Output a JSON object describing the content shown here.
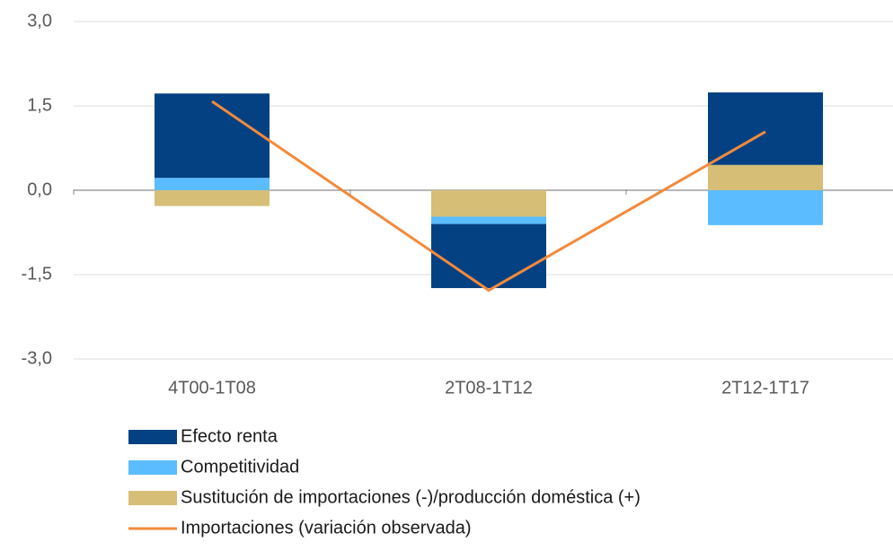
{
  "chart_data": {
    "type": "bar",
    "stacked": true,
    "categories": [
      "4T00-1T08",
      "2T08-1T12",
      "2T12-1T17"
    ],
    "series": [
      {
        "name": "Efecto renta",
        "color": "#034182",
        "values": [
          1.5,
          -1.14,
          1.29
        ]
      },
      {
        "name": "Competitividad",
        "color": "#5bbcff",
        "values": [
          0.22,
          -0.13,
          -0.62
        ]
      },
      {
        "name": "Sustitución de importaciones (-)/producción doméstica (+)",
        "color": "#d6be77",
        "values": [
          -0.28,
          -0.47,
          0.45
        ]
      },
      {
        "name": "Importaciones (variación observada)",
        "color": "#f28a3c",
        "type": "line",
        "values": [
          1.58,
          -1.78,
          1.04
        ]
      }
    ],
    "ylim": [
      -3,
      3
    ],
    "yticks": [
      {
        "value": -3,
        "label": "-3,0"
      },
      {
        "value": -1.5,
        "label": "-1,5"
      },
      {
        "value": 0,
        "label": "0,0"
      },
      {
        "value": 1.5,
        "label": "1,5"
      },
      {
        "value": 3,
        "label": "3,0"
      }
    ],
    "grid": true,
    "legend": "bottom"
  }
}
